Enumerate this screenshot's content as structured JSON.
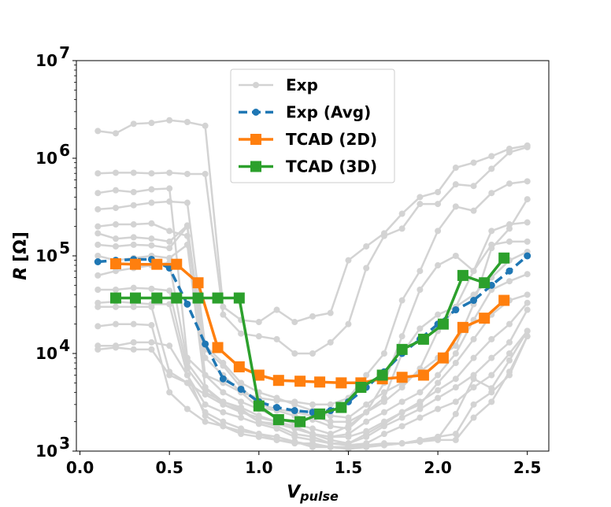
{
  "chart_data": {
    "type": "line",
    "title": "",
    "xlabel": "V",
    "xlabel_sub": "pulse",
    "ylabel": "R",
    "ylabel_unit": "[Ω]",
    "xlim": [
      -0.02,
      2.62
    ],
    "ylim": [
      1000,
      10000000
    ],
    "yscale": "log",
    "x_ticks": [
      0.0,
      0.5,
      1.0,
      1.5,
      2.0,
      2.5
    ],
    "x_tick_labels": [
      "0.0",
      "0.5",
      "1.0",
      "1.5",
      "2.0",
      "2.5"
    ],
    "y_ticks": [
      1000,
      10000,
      100000,
      1000000,
      10000000
    ],
    "y_tick_labels": [
      {
        "base": "10",
        "exp": "3"
      },
      {
        "base": "10",
        "exp": "4"
      },
      {
        "base": "10",
        "exp": "5"
      },
      {
        "base": "10",
        "exp": "6"
      },
      {
        "base": "10",
        "exp": "7"
      }
    ],
    "grid": false,
    "legend_position": "top-center",
    "legend": [
      {
        "label": "Exp",
        "series": "exp"
      },
      {
        "label": "Exp (Avg)",
        "series": "avg"
      },
      {
        "label": "TCAD (2D)",
        "series": "tcad2d"
      },
      {
        "label": "TCAD (3D)",
        "series": "tcad3d"
      }
    ],
    "colors": {
      "exp": "#d3d3d3",
      "avg": "#1f77b4",
      "tcad2d": "#ff7f0e",
      "tcad3d": "#2ca02c"
    },
    "exp_x": [
      0.1,
      0.2,
      0.3,
      0.4,
      0.5,
      0.6,
      0.7,
      0.8,
      0.9,
      1.0,
      1.1,
      1.2,
      1.3,
      1.4,
      1.5,
      1.6,
      1.7,
      1.8,
      1.9,
      2.0,
      2.1,
      2.2,
      2.3,
      2.4,
      2.5
    ],
    "exp_series": [
      [
        1900000,
        1800000,
        2250000,
        2300000,
        2450000,
        2350000,
        2150000,
        30000,
        22000,
        21000,
        28000,
        21000,
        24000,
        26000,
        90000,
        125000,
        170000,
        270000,
        400000,
        450000,
        800000,
        900000,
        1050000,
        1250000,
        1350000
      ],
      [
        700000,
        710000,
        710000,
        700000,
        710000,
        690000,
        690000,
        25000,
        16000,
        15000,
        14000,
        10000,
        10000,
        13000,
        20000,
        75000,
        160000,
        190000,
        340000,
        340000,
        540000,
        520000,
        780000,
        1150000,
        1300000
      ],
      [
        440000,
        470000,
        450000,
        480000,
        490000,
        9000,
        6000,
        5000,
        4000,
        3500,
        3300,
        3200,
        3000,
        3000,
        3500,
        6000,
        10000,
        35000,
        70000,
        180000,
        320000,
        290000,
        440000,
        550000,
        580000
      ],
      [
        300000,
        310000,
        330000,
        350000,
        360000,
        350000,
        12000,
        8000,
        5000,
        4000,
        3500,
        3000,
        2600,
        2300,
        2200,
        3000,
        4000,
        5000,
        6500,
        9000,
        12000,
        32000,
        120000,
        190000,
        380000
      ],
      [
        200000,
        210000,
        210000,
        215000,
        180000,
        160000,
        11000,
        7500,
        4500,
        3000,
        2700,
        2500,
        2300,
        2000,
        2000,
        2500,
        3200,
        4500,
        7000,
        17000,
        30000,
        70000,
        180000,
        210000,
        220000
      ],
      [
        170000,
        150000,
        155000,
        150000,
        140000,
        205000,
        9000,
        6000,
        4000,
        2800,
        2600,
        2300,
        2100,
        1800,
        1700,
        2500,
        5000,
        15000,
        45000,
        80000,
        100000,
        70000,
        130000,
        140000,
        140000
      ],
      [
        130000,
        125000,
        130000,
        128000,
        120000,
        200000,
        6000,
        4000,
        3200,
        2700,
        2200,
        1900,
        1700,
        1500,
        1800,
        2500,
        3500,
        10000,
        18000,
        25000,
        30000,
        40000,
        60000,
        90000,
        110000
      ],
      [
        100000,
        90000,
        95000,
        100000,
        95000,
        130000,
        4500,
        3200,
        2800,
        2300,
        2000,
        1800,
        1500,
        1400,
        1500,
        2000,
        2500,
        3200,
        4000,
        6000,
        10000,
        22000,
        45000,
        55000,
        65000
      ],
      [
        63000,
        70000,
        75000,
        80000,
        85000,
        8000,
        4500,
        3000,
        2500,
        2200,
        2000,
        1700,
        1500,
        1400,
        1400,
        1600,
        2000,
        2500,
        3000,
        5000,
        8000,
        14000,
        25000,
        35000,
        40000
      ],
      [
        45000,
        45000,
        47000,
        46000,
        44000,
        7000,
        4000,
        3200,
        2700,
        2000,
        1900,
        1700,
        1500,
        1300,
        1200,
        1500,
        1900,
        2500,
        3200,
        4200,
        5500,
        9000,
        14000,
        20000,
        33000
      ],
      [
        30000,
        30000,
        30000,
        30000,
        6500,
        5000,
        3800,
        3000,
        2600,
        2000,
        1800,
        1500,
        1400,
        1200,
        1200,
        1400,
        1800,
        2200,
        2700,
        3500,
        4500,
        6000,
        9000,
        13000,
        28000
      ],
      [
        33000,
        34000,
        33000,
        32000,
        32000,
        6000,
        3000,
        2500,
        2200,
        1900,
        1700,
        1400,
        1300,
        1200,
        1150,
        1200,
        1500,
        1800,
        2200,
        2700,
        3200,
        4500,
        6000,
        10000,
        17000
      ],
      [
        19000,
        20000,
        20000,
        19500,
        4000,
        2700,
        2000,
        1800,
        1500,
        1400,
        1300,
        1200,
        1200,
        1100,
        1100,
        1150,
        1200,
        1200,
        1300,
        1400,
        1500,
        3000,
        4000,
        6000,
        15000
      ],
      [
        12000,
        12000,
        13000,
        13000,
        12000,
        6000,
        2300,
        1800,
        1600,
        1500,
        1400,
        1250,
        1150,
        1100,
        1100,
        1150,
        1150,
        1200,
        1250,
        1300,
        1300,
        2200,
        3200,
        6500,
        15000
      ],
      [
        11000,
        11500,
        11000,
        11000,
        6000,
        5000,
        2500,
        2000,
        1700,
        1500,
        1300,
        1250,
        1100,
        1100,
        1050,
        1100,
        1150,
        1200,
        1250,
        1350,
        2400,
        5500,
        4400,
        8500,
        17000
      ]
    ],
    "series": [
      {
        "name": "Exp (Avg)",
        "key": "avg",
        "x": [
          0.1,
          0.2,
          0.3,
          0.4,
          0.5,
          0.6,
          0.7,
          0.8,
          0.9,
          1.0,
          1.1,
          1.2,
          1.3,
          1.4,
          1.5,
          1.6,
          1.7,
          1.8,
          1.9,
          2.0,
          2.1,
          2.2,
          2.3,
          2.4,
          2.5
        ],
        "values": [
          87000,
          90000,
          92000,
          92000,
          75000,
          32000,
          12500,
          5500,
          4300,
          3200,
          2800,
          2600,
          2500,
          2600,
          3200,
          4500,
          6500,
          10000,
          14000,
          20000,
          28000,
          35000,
          50000,
          70000,
          100000
        ]
      },
      {
        "name": "TCAD (2D)",
        "key": "tcad2d",
        "x": [
          0.2,
          0.31,
          0.43,
          0.54,
          0.66,
          0.77,
          0.89,
          1.0,
          1.11,
          1.23,
          1.34,
          1.46,
          1.57,
          1.69,
          1.8,
          1.92,
          2.03,
          2.14,
          2.26,
          2.37
        ],
        "values": [
          83000,
          82000,
          82000,
          82000,
          53000,
          11500,
          7300,
          6000,
          5300,
          5200,
          5100,
          5000,
          5000,
          5500,
          5700,
          6000,
          9000,
          18500,
          23000,
          35000
        ]
      },
      {
        "name": "TCAD (3D)",
        "key": "tcad3d",
        "x": [
          0.2,
          0.31,
          0.43,
          0.54,
          0.66,
          0.77,
          0.89,
          1.0,
          1.11,
          1.23,
          1.34,
          1.46,
          1.57,
          1.69,
          1.8,
          1.92,
          2.03,
          2.14,
          2.26,
          2.37
        ],
        "values": [
          37000,
          37000,
          37000,
          37000,
          37000,
          37000,
          37000,
          2900,
          2100,
          2000,
          2400,
          2800,
          4500,
          6000,
          11000,
          14000,
          20000,
          63000,
          53000,
          95000
        ]
      }
    ]
  }
}
